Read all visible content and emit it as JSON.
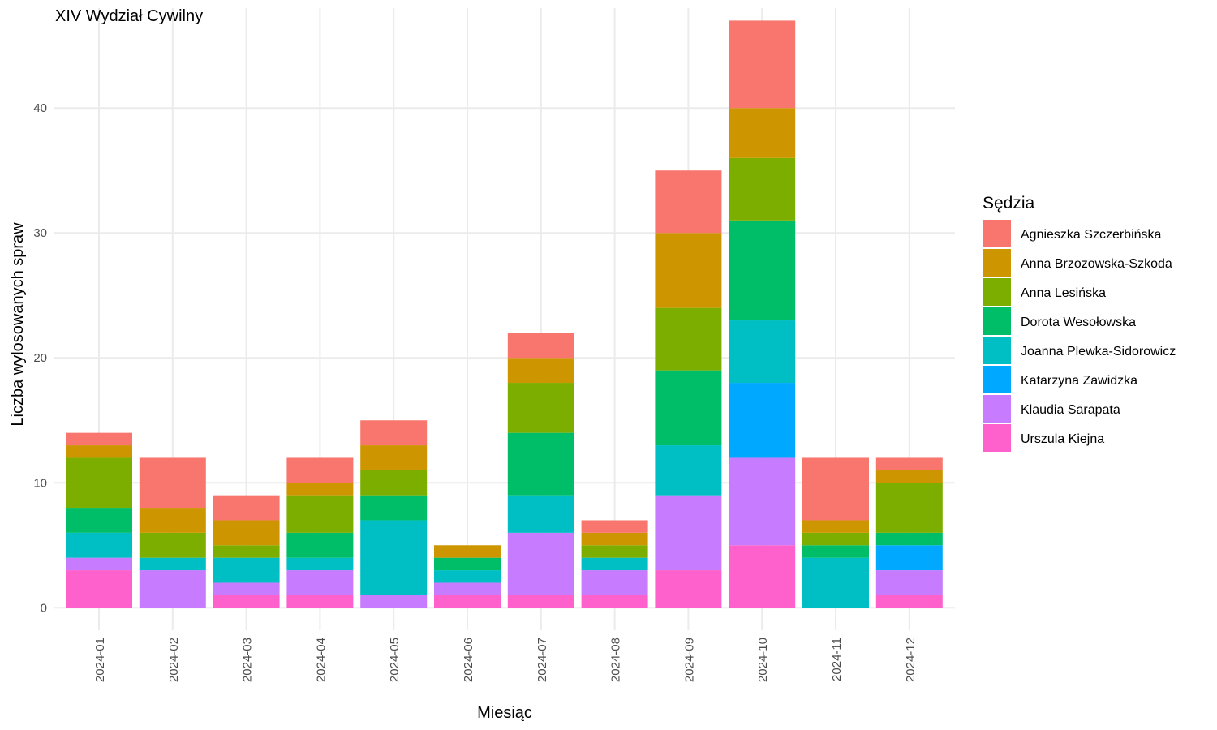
{
  "chart_data": {
    "type": "bar",
    "stacked": true,
    "title": "XIV Wydział Cywilny",
    "xlabel": "Miesiąc",
    "ylabel": "Liczba wylosowanych spraw",
    "ylim": [
      -1.8,
      48
    ],
    "y_ticks": [
      0,
      10,
      20,
      30,
      40
    ],
    "grid": true,
    "legend_title": "Sędzia",
    "legend_position": "right",
    "categories": [
      "2024-01",
      "2024-02",
      "2024-03",
      "2024-04",
      "2024-05",
      "2024-06",
      "2024-07",
      "2024-08",
      "2024-09",
      "2024-10",
      "2024-11",
      "2024-12"
    ],
    "series": [
      {
        "name": "Agnieszka Szczerbińska",
        "color": "#F8766D",
        "values": [
          1,
          4,
          2,
          2,
          2,
          0,
          2,
          1,
          5,
          7,
          5,
          1
        ]
      },
      {
        "name": "Anna Brzozowska-Szkoda",
        "color": "#CD9600",
        "values": [
          1,
          2,
          2,
          1,
          2,
          1,
          2,
          1,
          6,
          4,
          1,
          1
        ]
      },
      {
        "name": "Anna Lesińska",
        "color": "#7CAE00",
        "values": [
          4,
          2,
          1,
          3,
          2,
          0,
          4,
          1,
          5,
          5,
          1,
          4
        ]
      },
      {
        "name": "Dorota Wesołowska",
        "color": "#00BE67",
        "values": [
          2,
          0,
          0,
          2,
          2,
          1,
          5,
          0,
          6,
          8,
          1,
          1
        ]
      },
      {
        "name": "Joanna Plewka-Sidorowicz",
        "color": "#00BFC4",
        "values": [
          2,
          1,
          2,
          1,
          6,
          1,
          3,
          1,
          4,
          5,
          4,
          0
        ]
      },
      {
        "name": "Katarzyna Zawidzka",
        "color": "#00A9FF",
        "values": [
          0,
          0,
          0,
          0,
          0,
          0,
          0,
          0,
          0,
          6,
          0,
          2
        ]
      },
      {
        "name": "Klaudia Sarapata",
        "color": "#C77CFF",
        "values": [
          1,
          3,
          1,
          2,
          1,
          1,
          5,
          2,
          6,
          7,
          0,
          2
        ]
      },
      {
        "name": "Urszula Kiejna",
        "color": "#FF61CC",
        "values": [
          3,
          0,
          1,
          1,
          0,
          1,
          1,
          1,
          3,
          5,
          0,
          1
        ]
      }
    ]
  }
}
